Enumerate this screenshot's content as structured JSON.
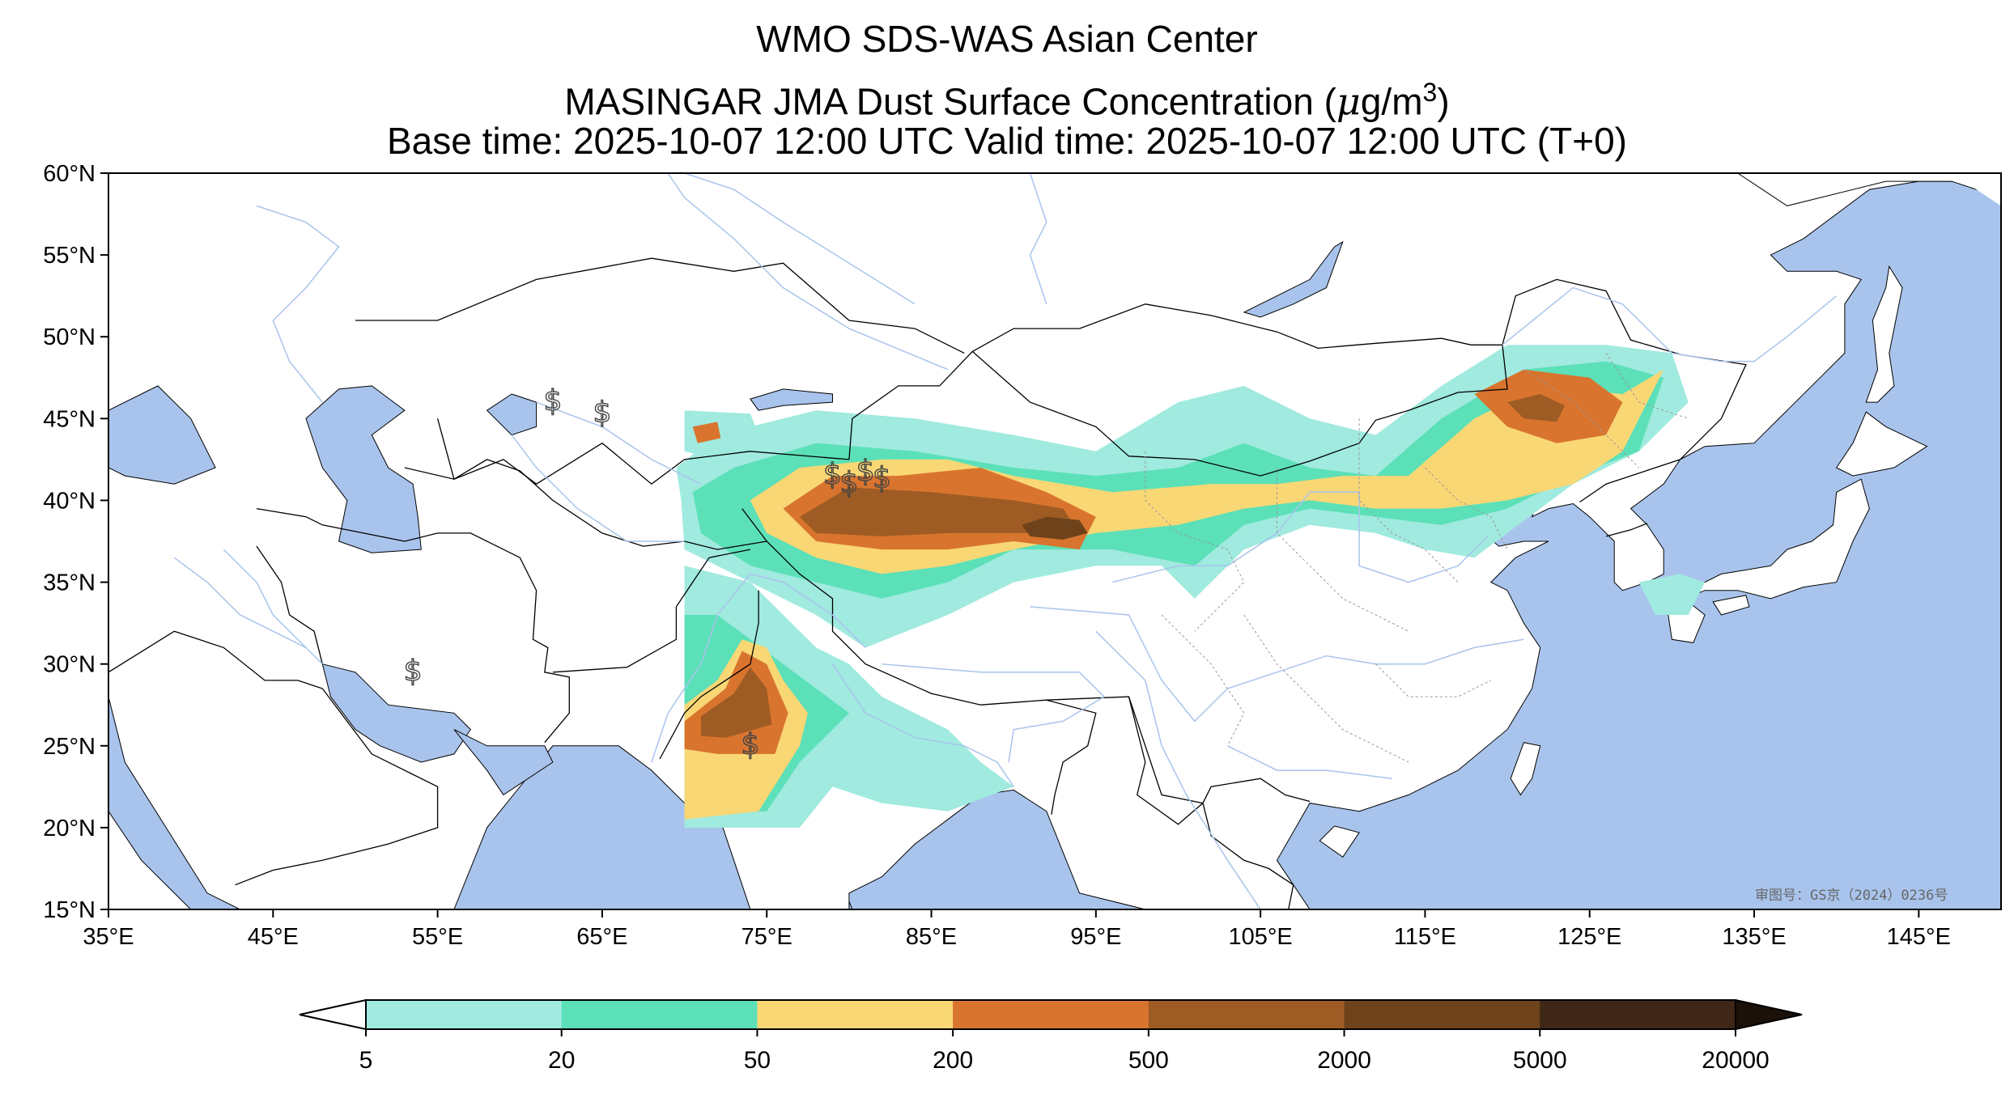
{
  "title": {
    "line1": "WMO SDS-WAS Asian Center",
    "line2_prefix": "MASINGAR JMA Dust Surface Concentration (",
    "line2_unit_mu": "μ",
    "line2_unit_rest": "g/m",
    "line2_unit_exp": "3",
    "line2_suffix": ")",
    "line3": "Base time: 2025-10-07 12:00 UTC Valid time: 2025-10-07 12:00 UTC (T+0)"
  },
  "map": {
    "lon_range": [
      35,
      150
    ],
    "lat_range": [
      15,
      60
    ],
    "x_ticks": [
      {
        "value": 35,
        "label": "35°E"
      },
      {
        "value": 45,
        "label": "45°E"
      },
      {
        "value": 55,
        "label": "55°E"
      },
      {
        "value": 65,
        "label": "65°E"
      },
      {
        "value": 75,
        "label": "75°E"
      },
      {
        "value": 85,
        "label": "85°E"
      },
      {
        "value": 95,
        "label": "95°E"
      },
      {
        "value": 105,
        "label": "105°E"
      },
      {
        "value": 115,
        "label": "115°E"
      },
      {
        "value": 125,
        "label": "125°E"
      },
      {
        "value": 135,
        "label": "135°E"
      },
      {
        "value": 145,
        "label": "145°E"
      }
    ],
    "y_ticks": [
      {
        "value": 60,
        "label": "60°N"
      },
      {
        "value": 55,
        "label": "55°N"
      },
      {
        "value": 50,
        "label": "50°N"
      },
      {
        "value": 45,
        "label": "45°N"
      },
      {
        "value": 40,
        "label": "40°N"
      },
      {
        "value": 35,
        "label": "35°N"
      },
      {
        "value": 30,
        "label": "30°N"
      },
      {
        "value": 25,
        "label": "25°N"
      },
      {
        "value": 20,
        "label": "20°N"
      },
      {
        "value": 15,
        "label": "15°N"
      }
    ],
    "watermark": "审图号：GS京（2024）0236号",
    "colors": {
      "sea": "#a9c4ec",
      "land": "#ffffff",
      "border": "#000000",
      "river": "#a9c4ec"
    }
  },
  "colorbar": {
    "levels": [
      {
        "label": "5",
        "color": "#a0eadf"
      },
      {
        "label": "20",
        "color": "#5ce0b8"
      },
      {
        "label": "50",
        "color": "#f9d774"
      },
      {
        "label": "200",
        "color": "#d9742e"
      },
      {
        "label": "500",
        "color": "#9e5c24"
      },
      {
        "label": "2000",
        "color": "#6e431c"
      },
      {
        "label": "5000",
        "color": "#3e2716"
      },
      {
        "label": "20000",
        "color": "#1c1109"
      }
    ],
    "under_color": "#ffffff",
    "over_color": "#1c1109"
  },
  "dust_regions": [
    {
      "name": "taklimakan-outer",
      "level": 0,
      "poly": [
        [
          69.5,
          42
        ],
        [
          72,
          44
        ],
        [
          78,
          45.5
        ],
        [
          84,
          45
        ],
        [
          90,
          44
        ],
        [
          95,
          43
        ],
        [
          100,
          46
        ],
        [
          104,
          47
        ],
        [
          108,
          45
        ],
        [
          112,
          44
        ],
        [
          116,
          47
        ],
        [
          120,
          49.5
        ],
        [
          126,
          49.5
        ],
        [
          130,
          49
        ],
        [
          131,
          46
        ],
        [
          128,
          43
        ],
        [
          124,
          41
        ],
        [
          120,
          38
        ],
        [
          118,
          36.5
        ],
        [
          115,
          37
        ],
        [
          112,
          38
        ],
        [
          108,
          38.5
        ],
        [
          104,
          37
        ],
        [
          101,
          34
        ],
        [
          99,
          36
        ],
        [
          95,
          36
        ],
        [
          90,
          35
        ],
        [
          86,
          33
        ],
        [
          81,
          31
        ],
        [
          78,
          33
        ],
        [
          74,
          35
        ],
        [
          70,
          37
        ],
        [
          69.8,
          40
        ]
      ]
    },
    {
      "name": "taklimakan-20",
      "level": 1,
      "poly": [
        [
          70.5,
          40.5
        ],
        [
          73,
          42
        ],
        [
          78,
          43.5
        ],
        [
          84,
          43
        ],
        [
          90,
          42
        ],
        [
          95,
          41.5
        ],
        [
          100,
          42
        ],
        [
          104,
          43.5
        ],
        [
          108,
          42
        ],
        [
          112,
          41.5
        ],
        [
          116,
          45
        ],
        [
          121,
          48
        ],
        [
          126,
          48.5
        ],
        [
          129.5,
          47.5
        ],
        [
          128,
          43
        ],
        [
          124,
          41.5
        ],
        [
          120,
          39.5
        ],
        [
          116,
          38.5
        ],
        [
          112,
          39
        ],
        [
          108,
          39.5
        ],
        [
          104,
          38.5
        ],
        [
          101,
          36
        ],
        [
          96,
          37
        ],
        [
          90,
          37
        ],
        [
          86,
          35
        ],
        [
          82,
          34
        ],
        [
          78,
          35
        ],
        [
          74,
          36
        ],
        [
          71,
          38
        ]
      ]
    },
    {
      "name": "taklimakan-50",
      "level": 2,
      "poly": [
        [
          74,
          40
        ],
        [
          77,
          42
        ],
        [
          82,
          42.5
        ],
        [
          86,
          42.5
        ],
        [
          90,
          41.5
        ],
        [
          96,
          40.5
        ],
        [
          102,
          41
        ],
        [
          106,
          41
        ],
        [
          110,
          41.5
        ],
        [
          114,
          41.5
        ],
        [
          118,
          45
        ],
        [
          122,
          47
        ],
        [
          127,
          46.5
        ],
        [
          129.5,
          48
        ],
        [
          127,
          43
        ],
        [
          124,
          41
        ],
        [
          120,
          40
        ],
        [
          116,
          39.5
        ],
        [
          112,
          39.5
        ],
        [
          108,
          40
        ],
        [
          104,
          39.5
        ],
        [
          100,
          38.5
        ],
        [
          95,
          38
        ],
        [
          90,
          37
        ],
        [
          86,
          36
        ],
        [
          82,
          35.5
        ],
        [
          78,
          36.5
        ],
        [
          75,
          38
        ]
      ]
    },
    {
      "name": "taklimakan-200",
      "level": 3,
      "poly": [
        [
          76,
          39.5
        ],
        [
          79,
          41.5
        ],
        [
          83,
          41.5
        ],
        [
          88,
          42
        ],
        [
          92,
          40.5
        ],
        [
          95,
          39
        ],
        [
          94,
          37
        ],
        [
          90,
          37.5
        ],
        [
          86,
          37
        ],
        [
          82,
          37
        ],
        [
          78,
          37.5
        ]
      ]
    },
    {
      "name": "taklimakan-500",
      "level": 4,
      "poly": [
        [
          77,
          39
        ],
        [
          80,
          40.8
        ],
        [
          85,
          40.5
        ],
        [
          90,
          40
        ],
        [
          93,
          39.5
        ],
        [
          94,
          38
        ],
        [
          90,
          38
        ],
        [
          86,
          38
        ],
        [
          82,
          37.8
        ],
        [
          78,
          38
        ]
      ]
    },
    {
      "name": "qaidam-2000",
      "level": 5,
      "poly": [
        [
          90.5,
          38.5
        ],
        [
          92,
          39
        ],
        [
          94,
          38.8
        ],
        [
          94.5,
          38
        ],
        [
          93,
          37.6
        ],
        [
          91,
          37.8
        ]
      ]
    },
    {
      "name": "mongolia-200",
      "level": 3,
      "poly": [
        [
          118,
          46.5
        ],
        [
          121,
          48
        ],
        [
          125,
          47.5
        ],
        [
          127,
          46
        ],
        [
          126,
          44
        ],
        [
          123,
          43.5
        ],
        [
          120,
          44.5
        ]
      ]
    },
    {
      "name": "mongolia-500",
      "level": 4,
      "poly": [
        [
          120,
          46
        ],
        [
          122,
          46.5
        ],
        [
          123.5,
          45.8
        ],
        [
          123,
          44.8
        ],
        [
          121,
          45
        ]
      ]
    },
    {
      "name": "balkhash-outer",
      "level": 0,
      "poly": [
        [
          70,
          45.5
        ],
        [
          74,
          45.3
        ],
        [
          74.5,
          44
        ],
        [
          72,
          42.5
        ],
        [
          70,
          43
        ]
      ]
    },
    {
      "name": "balkhash-200",
      "level": 3,
      "poly": [
        [
          70.5,
          44.5
        ],
        [
          72,
          44.8
        ],
        [
          72.2,
          43.8
        ],
        [
          70.8,
          43.5
        ]
      ]
    },
    {
      "name": "indus-outer",
      "level": 0,
      "poly": [
        [
          70,
          36
        ],
        [
          74,
          35
        ],
        [
          76,
          33
        ],
        [
          78,
          31
        ],
        [
          80,
          30
        ],
        [
          82,
          28
        ],
        [
          86,
          26
        ],
        [
          88,
          24
        ],
        [
          90,
          22.5
        ],
        [
          86,
          21
        ],
        [
          82,
          21.5
        ],
        [
          79,
          22.5
        ],
        [
          77,
          20
        ],
        [
          74,
          20
        ],
        [
          70,
          20
        ]
      ]
    },
    {
      "name": "indus-20",
      "level": 1,
      "poly": [
        [
          70,
          33
        ],
        [
          72,
          33
        ],
        [
          74,
          31.5
        ],
        [
          76,
          30
        ],
        [
          78,
          28.5
        ],
        [
          80,
          27
        ],
        [
          77,
          24
        ],
        [
          75,
          21
        ],
        [
          70,
          21
        ]
      ]
    },
    {
      "name": "indus-50",
      "level": 2,
      "poly": [
        [
          70,
          27.5
        ],
        [
          72,
          29
        ],
        [
          73.5,
          31.5
        ],
        [
          75,
          31
        ],
        [
          76,
          29
        ],
        [
          77.5,
          27
        ],
        [
          77,
          25
        ],
        [
          74.5,
          21
        ],
        [
          70,
          20.5
        ]
      ]
    },
    {
      "name": "indus-200",
      "level": 3,
      "poly": [
        [
          70,
          26.5
        ],
        [
          72.5,
          28.5
        ],
        [
          73.5,
          30.8
        ],
        [
          75,
          30
        ],
        [
          76.3,
          27
        ],
        [
          75.5,
          24.5
        ],
        [
          72,
          24.5
        ],
        [
          70,
          24.8
        ]
      ]
    },
    {
      "name": "indus-500",
      "level": 4,
      "poly": [
        [
          71,
          26.8
        ],
        [
          73,
          28.2
        ],
        [
          74,
          29.8
        ],
        [
          75,
          28.5
        ],
        [
          75.3,
          26.3
        ],
        [
          72.5,
          25.5
        ],
        [
          71,
          25.6
        ]
      ]
    },
    {
      "name": "japan-patch",
      "level": 0,
      "poly": [
        [
          128,
          35
        ],
        [
          130.5,
          35.5
        ],
        [
          132,
          35
        ],
        [
          131,
          33
        ],
        [
          129,
          33
        ]
      ]
    }
  ],
  "symbols": [
    {
      "lon": 62,
      "lat": 45.5
    },
    {
      "lon": 65,
      "lat": 44.8
    },
    {
      "lon": 53.5,
      "lat": 29
    },
    {
      "lon": 79,
      "lat": 41
    },
    {
      "lon": 80,
      "lat": 40.5
    },
    {
      "lon": 81,
      "lat": 41.2
    },
    {
      "lon": 82,
      "lat": 40.8
    },
    {
      "lon": 74,
      "lat": 24.5
    }
  ]
}
